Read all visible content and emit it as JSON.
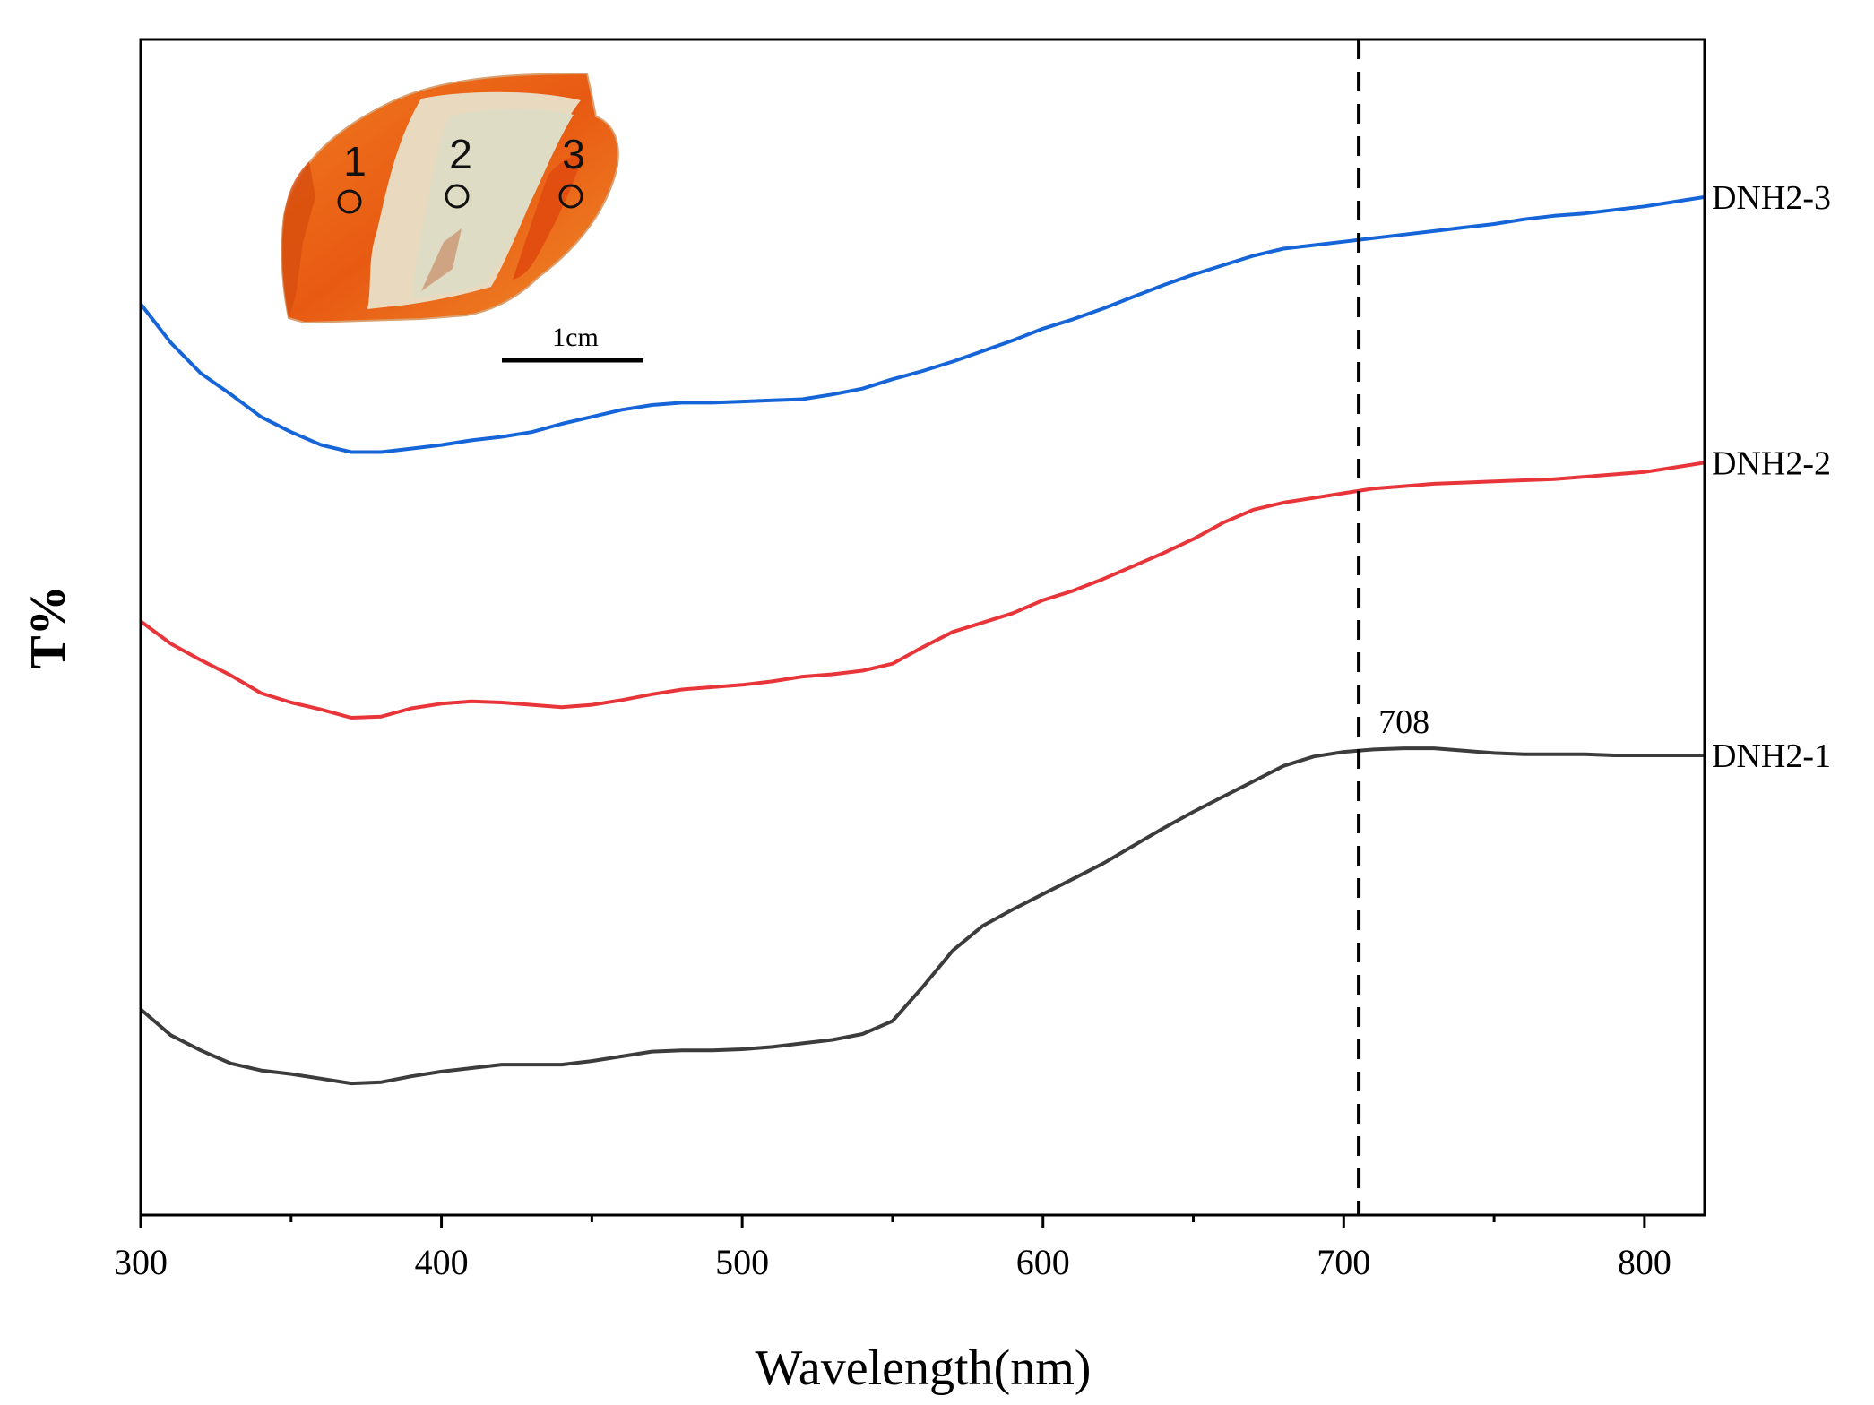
{
  "chart_data": {
    "type": "line",
    "xlabel": "Wavelength(nm)",
    "ylabel": "T%",
    "xlim": [
      300,
      820
    ],
    "ylim": [
      0,
      100
    ],
    "x_ticks": [
      300,
      400,
      500,
      600,
      700,
      800
    ],
    "x_minor_ticks": [
      350,
      450,
      550,
      650,
      750
    ],
    "grid": false,
    "y_tick_labels": false,
    "reference_line": {
      "x": 705,
      "style": "dashed",
      "color": "#000000"
    },
    "annotations": [
      {
        "text": "708",
        "x": 708,
        "y": 39.5
      }
    ],
    "series": [
      {
        "name": "DNH2-3",
        "color": "#1565D8",
        "x": [
          300,
          310,
          320,
          330,
          340,
          350,
          360,
          370,
          380,
          390,
          400,
          410,
          420,
          430,
          440,
          450,
          460,
          470,
          480,
          490,
          500,
          510,
          520,
          530,
          540,
          550,
          560,
          570,
          580,
          590,
          600,
          610,
          620,
          630,
          640,
          650,
          660,
          670,
          680,
          690,
          700,
          710,
          720,
          730,
          740,
          750,
          760,
          770,
          780,
          790,
          800,
          810,
          820
        ],
        "values": [
          77.5,
          74.2,
          71.6,
          69.8,
          67.9,
          66.6,
          65.5,
          64.9,
          64.9,
          65.2,
          65.5,
          65.9,
          66.2,
          66.6,
          67.3,
          67.9,
          68.5,
          68.9,
          69.1,
          69.1,
          69.2,
          69.3,
          69.4,
          69.8,
          70.3,
          71.1,
          71.8,
          72.6,
          73.5,
          74.4,
          75.4,
          76.2,
          77.1,
          78.1,
          79.1,
          80.0,
          80.8,
          81.6,
          82.2,
          82.5,
          82.8,
          83.1,
          83.4,
          83.7,
          84.0,
          84.3,
          84.7,
          85.0,
          85.2,
          85.5,
          85.8,
          86.2,
          86.6
        ]
      },
      {
        "name": "DNH2-2",
        "color": "#E8353A",
        "x": [
          300,
          310,
          320,
          330,
          340,
          350,
          360,
          370,
          380,
          390,
          400,
          410,
          420,
          430,
          440,
          450,
          460,
          470,
          480,
          490,
          500,
          510,
          520,
          530,
          540,
          550,
          560,
          570,
          580,
          590,
          600,
          610,
          620,
          630,
          640,
          650,
          660,
          670,
          680,
          690,
          700,
          710,
          720,
          730,
          740,
          750,
          760,
          770,
          780,
          790,
          800,
          810,
          820
        ],
        "values": [
          50.5,
          48.6,
          47.2,
          45.9,
          44.4,
          43.6,
          43.0,
          42.3,
          42.4,
          43.1,
          43.5,
          43.7,
          43.6,
          43.4,
          43.2,
          43.4,
          43.8,
          44.3,
          44.7,
          44.9,
          45.1,
          45.4,
          45.8,
          46.0,
          46.3,
          46.9,
          48.3,
          49.6,
          50.4,
          51.2,
          52.3,
          53.1,
          54.1,
          55.2,
          56.3,
          57.5,
          58.9,
          60.0,
          60.6,
          61.0,
          61.4,
          61.8,
          62.0,
          62.2,
          62.3,
          62.4,
          62.5,
          62.6,
          62.8,
          63.0,
          63.2,
          63.6,
          64.0
        ]
      },
      {
        "name": "DNH2-1",
        "color": "#3C3C3C",
        "x": [
          300,
          310,
          320,
          330,
          340,
          350,
          360,
          370,
          380,
          390,
          400,
          410,
          420,
          430,
          440,
          450,
          460,
          470,
          480,
          490,
          500,
          510,
          520,
          530,
          540,
          550,
          560,
          570,
          580,
          590,
          600,
          610,
          620,
          630,
          640,
          650,
          660,
          670,
          680,
          690,
          700,
          710,
          720,
          730,
          740,
          750,
          760,
          770,
          780,
          790,
          800,
          810,
          820
        ],
        "values": [
          17.5,
          15.3,
          14.0,
          12.9,
          12.3,
          12.0,
          11.6,
          11.2,
          11.3,
          11.8,
          12.2,
          12.5,
          12.8,
          12.8,
          12.8,
          13.1,
          13.5,
          13.9,
          14.0,
          14.0,
          14.1,
          14.3,
          14.6,
          14.9,
          15.4,
          16.5,
          19.4,
          22.5,
          24.6,
          26.0,
          27.3,
          28.6,
          29.9,
          31.4,
          32.9,
          34.3,
          35.6,
          36.9,
          38.2,
          39.0,
          39.4,
          39.6,
          39.7,
          39.7,
          39.5,
          39.3,
          39.2,
          39.2,
          39.2,
          39.1,
          39.1,
          39.1,
          39.1
        ]
      }
    ],
    "inset": {
      "markers": [
        "1",
        "2",
        "3"
      ],
      "scale_bar_label": "1cm"
    }
  }
}
